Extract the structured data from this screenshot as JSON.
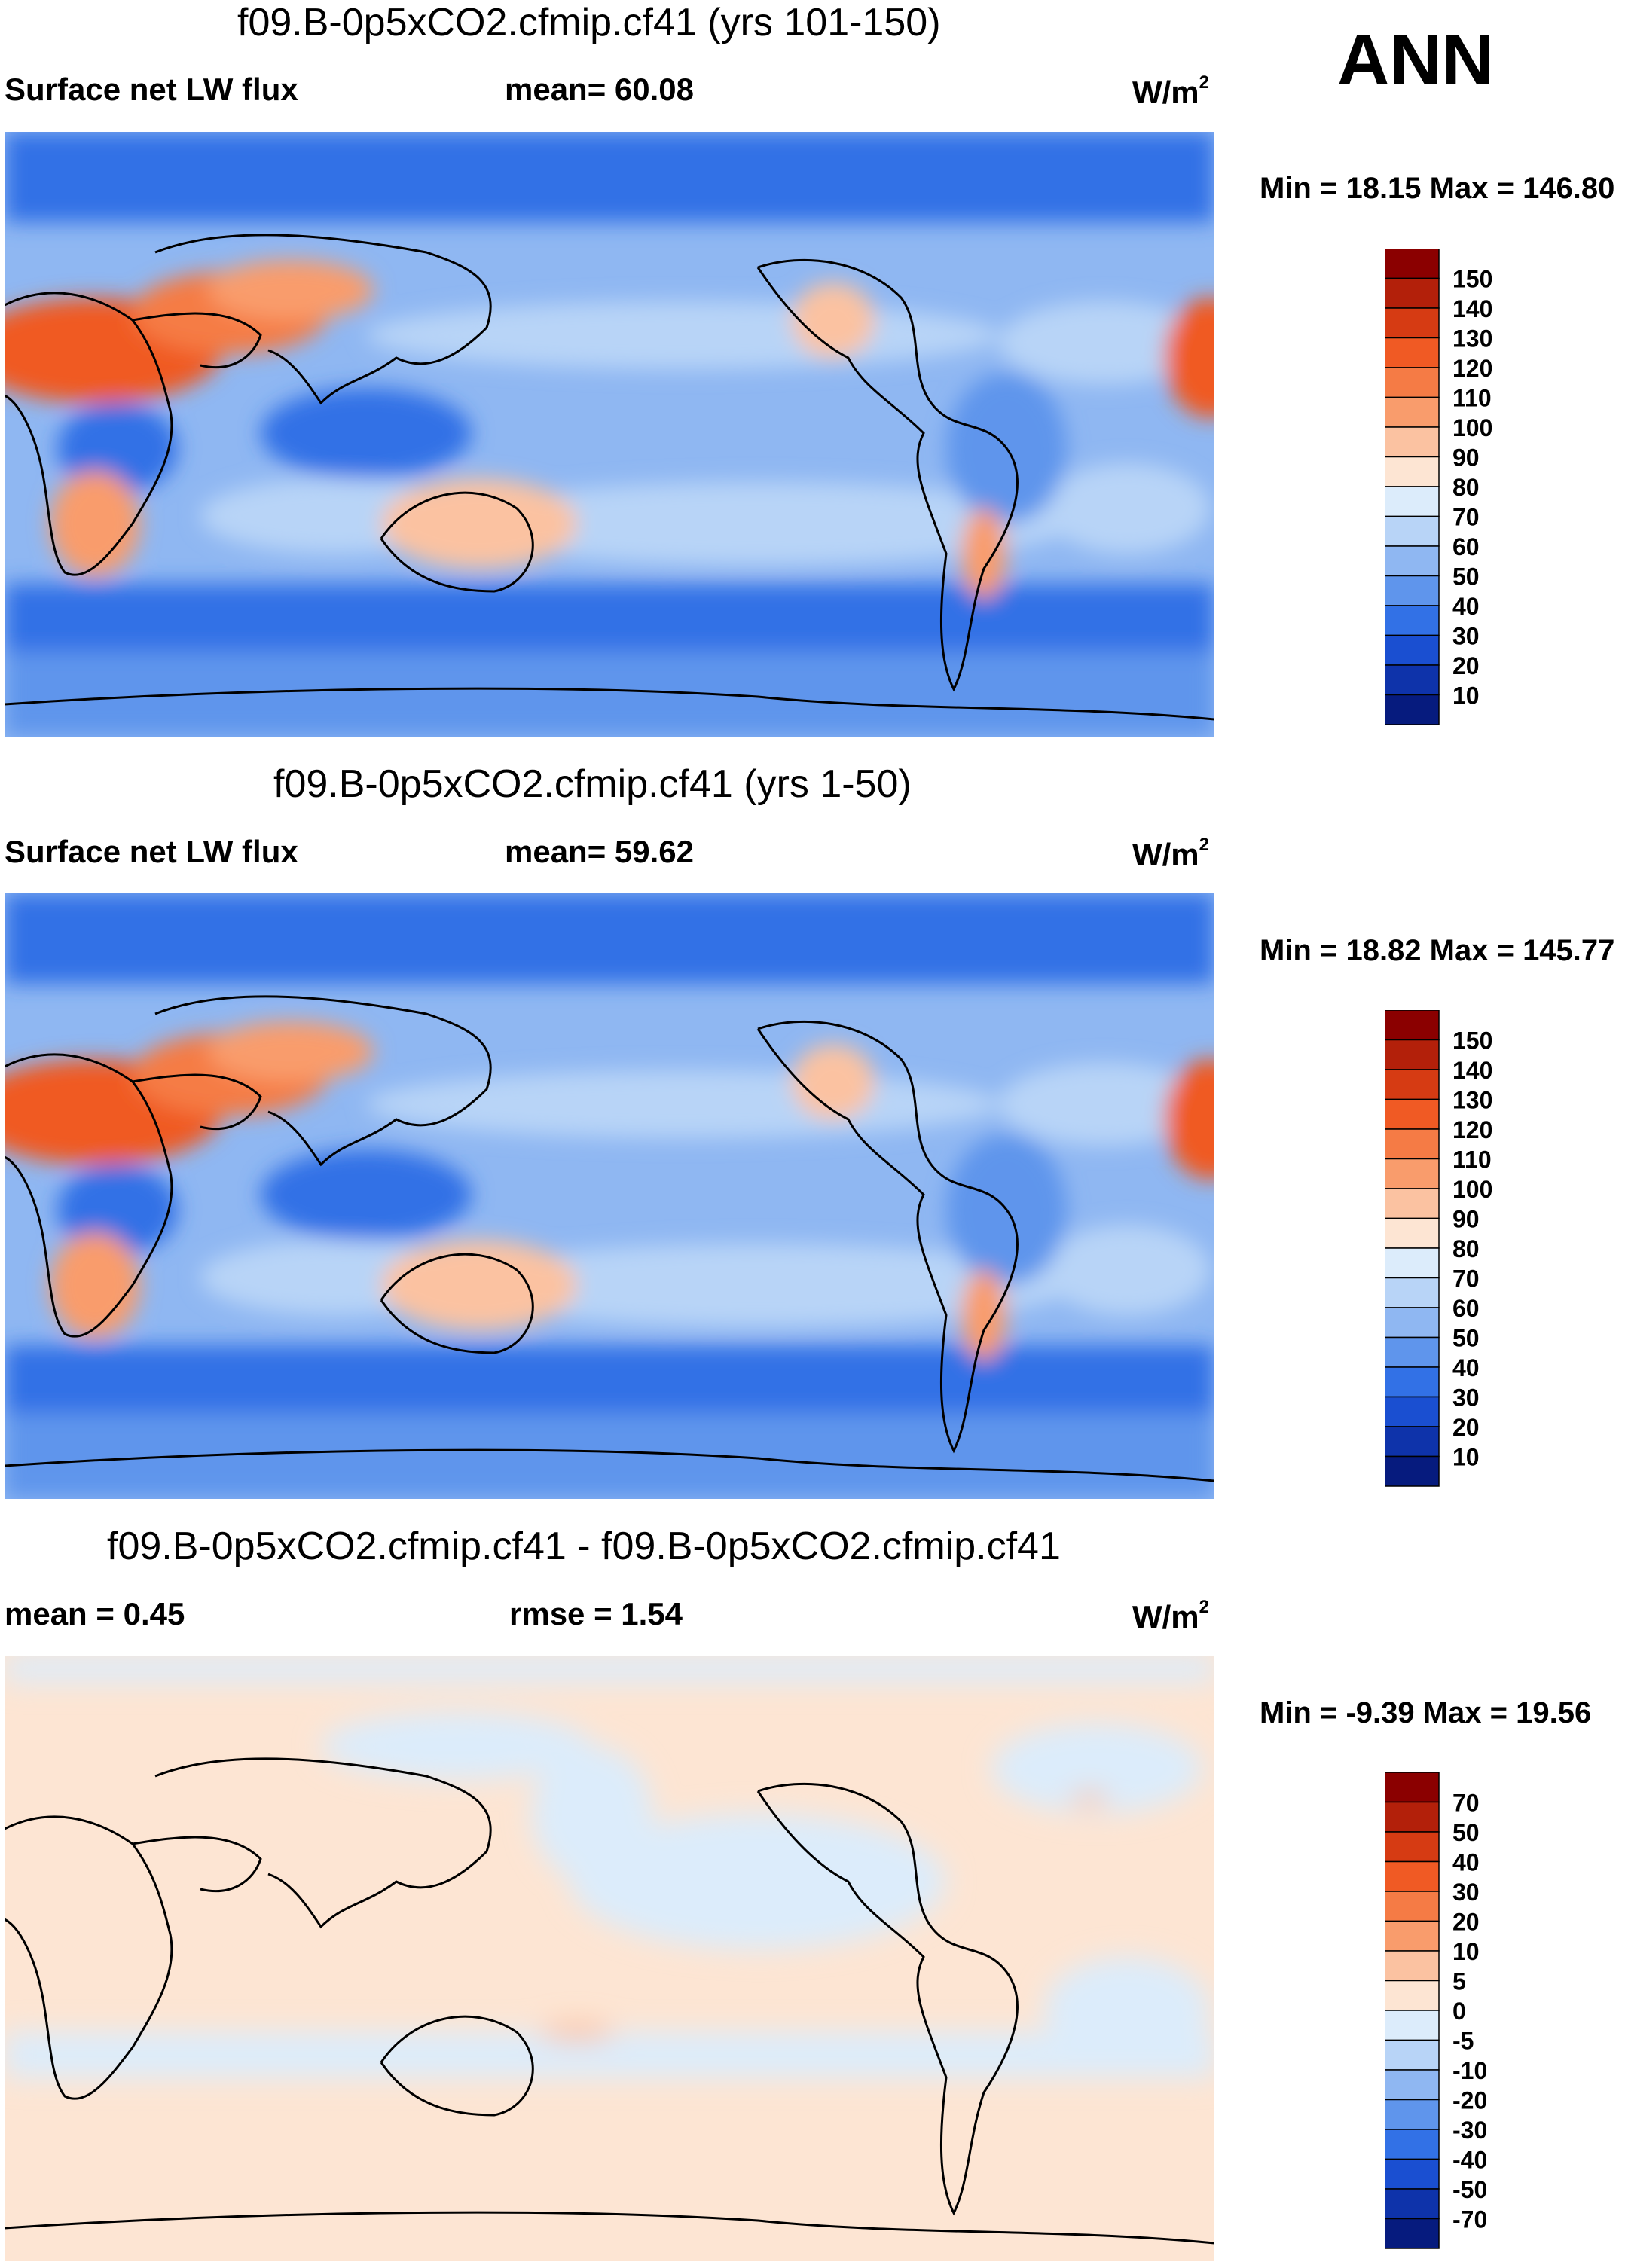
{
  "season": "ANN",
  "colorbars": {
    "abs": {
      "labels": [
        "150",
        "140",
        "130",
        "120",
        "110",
        "100",
        "90",
        "80",
        "70",
        "60",
        "50",
        "40",
        "30",
        "20",
        "10"
      ],
      "colors": [
        "#8b0000",
        "#b3200a",
        "#d63b13",
        "#f05a24",
        "#f57b45",
        "#f99c6c",
        "#fbc2a1",
        "#fde5d3",
        "#dcecfb",
        "#b8d4f7",
        "#8fb7f2",
        "#5f95ec",
        "#3271e6",
        "#1a4fd1",
        "#0e33aa",
        "#061b7e"
      ]
    },
    "diff": {
      "labels": [
        "70",
        "50",
        "40",
        "30",
        "20",
        "10",
        "5",
        "0",
        "-5",
        "-10",
        "-20",
        "-30",
        "-40",
        "-50",
        "-70"
      ],
      "colors": [
        "#8b0000",
        "#b3200a",
        "#d63b13",
        "#f05a24",
        "#f57b45",
        "#f99c6c",
        "#fbc2a1",
        "#fde5d3",
        "#dcecfb",
        "#b8d4f7",
        "#8fb7f2",
        "#5f95ec",
        "#3271e6",
        "#1a4fd1",
        "#0e33aa",
        "#061b7e"
      ]
    }
  },
  "panels": [
    {
      "title": "f09.B-0p5xCO2.cfmip.cf41 (yrs 101-150)",
      "left_label": "Surface net LW flux",
      "mid_label": "mean=  60.08",
      "units": "W/m",
      "units_exp": "2",
      "minmax": "Min =  18.15 Max = 146.80"
    },
    {
      "title": "f09.B-0p5xCO2.cfmip.cf41 (yrs 1-50)",
      "left_label": "Surface net LW flux",
      "mid_label": "mean=  59.62",
      "units": "W/m",
      "units_exp": "2",
      "minmax": "Min =  18.82 Max = 145.77"
    },
    {
      "title": "f09.B-0p5xCO2.cfmip.cf41 - f09.B-0p5xCO2.cfmip.cf41",
      "left_label": "mean =   0.45",
      "mid_label": "rmse =    1.54",
      "units": "W/m",
      "units_exp": "2",
      "minmax": "Min =  -9.39 Max =  19.56"
    }
  ]
}
